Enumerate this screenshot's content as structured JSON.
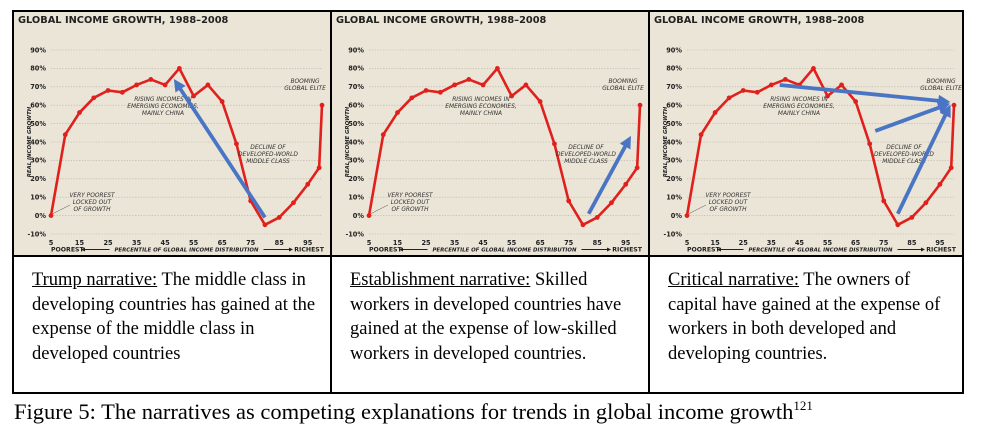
{
  "chart_data": [
    {
      "type": "line",
      "title": "GLOBAL INCOME GROWTH, 1988–2008",
      "ylabel": "REAL INCOME GROWTH",
      "xlabel": "PERCENTILE OF GLOBAL INCOME DISTRIBUTION",
      "x_left_label": "POOREST",
      "x_right_label": "RICHEST",
      "x_ticks": [
        "5",
        "15",
        "25",
        "35",
        "45",
        "55",
        "65",
        "75",
        "85",
        "95"
      ],
      "y_ticks": [
        "90%",
        "80%",
        "70%",
        "60%",
        "50%",
        "40%",
        "30%",
        "20%",
        "10%",
        "0%",
        "-10%"
      ],
      "ylim": [
        -10,
        90
      ],
      "xlim": [
        5,
        100
      ],
      "grid": true,
      "x": [
        5,
        10,
        15,
        20,
        25,
        30,
        35,
        40,
        45,
        50,
        55,
        60,
        65,
        70,
        75,
        80,
        85,
        90,
        95,
        99,
        100
      ],
      "series": [
        {
          "values": [
            0,
            44,
            56,
            64,
            68,
            67,
            71,
            74,
            71,
            80,
            65,
            71,
            62,
            39,
            8,
            -5,
            -1,
            7,
            17,
            26,
            60
          ]
        }
      ],
      "annotations": [
        {
          "lines": [
            "VERY POOREST",
            "LOCKED OUT",
            "OF GROWTH"
          ]
        },
        {
          "lines": [
            "RISING INCOMES IN",
            "EMERGING ECONOMIES,",
            "MAINLY CHINA"
          ]
        },
        {
          "lines": [
            "BOOMING",
            "GLOBAL ELITE"
          ]
        },
        {
          "lines": [
            "DECLINE OF",
            "DEVELOPED-WORLD",
            "MIDDLE CLASS"
          ]
        }
      ],
      "arrows": [
        {
          "from": [
            80,
            -1
          ],
          "to": [
            49,
            72
          ]
        }
      ],
      "line_color": "#e0201c",
      "arrow_color": "#4a74c4"
    },
    {
      "type": "line",
      "title": "GLOBAL INCOME GROWTH, 1988–2008",
      "ylabel": "REAL INCOME GROWTH",
      "xlabel": "PERCENTILE OF GLOBAL INCOME DISTRIBUTION",
      "x_left_label": "POOREST",
      "x_right_label": "RICHEST",
      "x_ticks": [
        "5",
        "15",
        "25",
        "35",
        "45",
        "55",
        "65",
        "75",
        "85",
        "95"
      ],
      "y_ticks": [
        "90%",
        "80%",
        "70%",
        "60%",
        "50%",
        "40%",
        "30%",
        "20%",
        "10%",
        "0%",
        "-10%"
      ],
      "ylim": [
        -10,
        90
      ],
      "xlim": [
        5,
        100
      ],
      "grid": true,
      "x": [
        5,
        10,
        15,
        20,
        25,
        30,
        35,
        40,
        45,
        50,
        55,
        60,
        65,
        70,
        75,
        80,
        85,
        90,
        95,
        99,
        100
      ],
      "series": [
        {
          "values": [
            0,
            44,
            56,
            64,
            68,
            67,
            71,
            74,
            71,
            80,
            65,
            71,
            62,
            39,
            8,
            -5,
            -1,
            7,
            17,
            26,
            60
          ]
        }
      ],
      "annotations": [
        {
          "lines": [
            "VERY POOREST",
            "LOCKED OUT",
            "OF GROWTH"
          ]
        },
        {
          "lines": [
            "RISING INCOMES IN",
            "EMERGING ECONOMIES,",
            "MAINLY CHINA"
          ]
        },
        {
          "lines": [
            "BOOMING",
            "GLOBAL ELITE"
          ]
        },
        {
          "lines": [
            "DECLINE OF",
            "DEVELOPED-WORLD",
            "MIDDLE CLASS"
          ]
        }
      ],
      "arrows": [
        {
          "from": [
            82,
            1
          ],
          "to": [
            96,
            41
          ]
        }
      ],
      "line_color": "#e0201c",
      "arrow_color": "#4a74c4"
    },
    {
      "type": "line",
      "title": "GLOBAL INCOME GROWTH, 1988–2008",
      "ylabel": "REAL INCOME GROWTH",
      "xlabel": "PERCENTILE OF GLOBAL INCOME DISTRIBUTION",
      "x_left_label": "POOREST",
      "x_right_label": "RICHEST",
      "x_ticks": [
        "5",
        "15",
        "25",
        "35",
        "45",
        "55",
        "65",
        "75",
        "85",
        "95"
      ],
      "y_ticks": [
        "90%",
        "80%",
        "70%",
        "60%",
        "50%",
        "40%",
        "30%",
        "20%",
        "10%",
        "0%",
        "-10%"
      ],
      "ylim": [
        -10,
        90
      ],
      "xlim": [
        5,
        100
      ],
      "grid": true,
      "x": [
        5,
        10,
        15,
        20,
        25,
        30,
        35,
        40,
        45,
        50,
        55,
        60,
        65,
        70,
        75,
        80,
        85,
        90,
        95,
        99,
        100
      ],
      "series": [
        {
          "values": [
            0,
            44,
            56,
            64,
            68,
            67,
            71,
            74,
            71,
            80,
            65,
            71,
            62,
            39,
            8,
            -5,
            -1,
            7,
            17,
            26,
            60
          ]
        }
      ],
      "annotations": [
        {
          "lines": [
            "VERY POOREST",
            "LOCKED OUT",
            "OF GROWTH"
          ]
        },
        {
          "lines": [
            "RISING INCOMES IN",
            "EMERGING ECONOMIES,",
            "MAINLY CHINA"
          ]
        },
        {
          "lines": [
            "BOOMING",
            "GLOBAL ELITE"
          ]
        },
        {
          "lines": [
            "DECLINE OF",
            "DEVELOPED-WORLD",
            "MIDDLE CLASS"
          ]
        }
      ],
      "arrows": [
        {
          "from": [
            38,
            71
          ],
          "to": [
            97,
            62
          ]
        },
        {
          "from": [
            72,
            46
          ],
          "to": [
            97,
            60
          ]
        },
        {
          "from": [
            80,
            1
          ],
          "to": [
            98,
            58
          ]
        }
      ],
      "line_color": "#e0201c",
      "arrow_color": "#4a74c4"
    }
  ],
  "panels": [
    {
      "caption_title": "Trump narrative:",
      "caption_text": " The middle class in developing countries has gained at the expense of the middle class in developed countries"
    },
    {
      "caption_title": "Establishment narrative:",
      "caption_text": " Skilled workers in developed countries have gained at the expense of low-skilled workers in developed countries."
    },
    {
      "caption_title": "Critical narrative:",
      "caption_text": " The owners of capital have gained at the expense of workers in both developed and developing countries."
    }
  ],
  "figure_caption": {
    "text": "Figure 5: The narratives as competing explanations for trends in global income growth",
    "superscript": "121"
  }
}
